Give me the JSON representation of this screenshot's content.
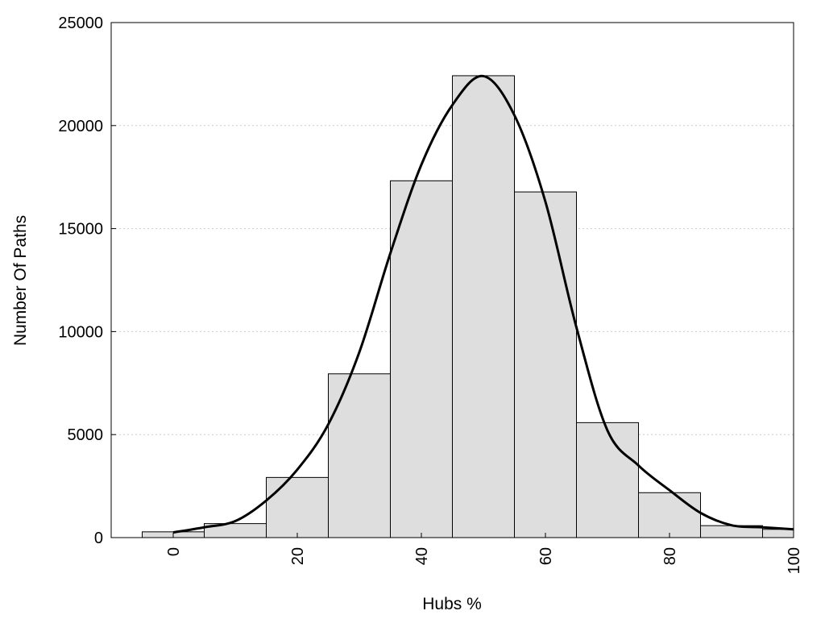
{
  "chart_data": {
    "type": "bar",
    "xlabel": "Hubs %",
    "ylabel": "Number Of Paths",
    "xlim": [
      -10,
      100
    ],
    "ylim": [
      0,
      25000
    ],
    "grid": {
      "horizontal": true,
      "style": "dotted"
    },
    "x_tick_labels": [
      "0",
      "20",
      "40",
      "60",
      "80",
      "100"
    ],
    "y_tick_labels": [
      "0",
      "5000",
      "10000",
      "15000",
      "20000",
      "25000"
    ],
    "bins": [
      {
        "center": 0,
        "value": 280
      },
      {
        "center": 10,
        "value": 680
      },
      {
        "center": 20,
        "value": 2920
      },
      {
        "center": 30,
        "value": 7950
      },
      {
        "center": 40,
        "value": 17320
      },
      {
        "center": 50,
        "value": 22420
      },
      {
        "center": 60,
        "value": 16780
      },
      {
        "center": 70,
        "value": 5580
      },
      {
        "center": 80,
        "value": 2180
      },
      {
        "center": 90,
        "value": 580
      },
      {
        "center": 100,
        "value": 400
      }
    ],
    "bin_width": 10,
    "density_curve": {
      "x": [
        0,
        5,
        10,
        15,
        20,
        25,
        30,
        35,
        40,
        45,
        50,
        55,
        60,
        65,
        70,
        75,
        80,
        85,
        90,
        95,
        100
      ],
      "y": [
        250,
        500,
        800,
        1800,
        3300,
        5500,
        9000,
        13800,
        18100,
        21000,
        22400,
        20500,
        16300,
        10200,
        5200,
        3500,
        2300,
        1200,
        600,
        500,
        400
      ]
    },
    "colors": {
      "bar_fill": "#dedede",
      "bar_stroke": "#000000",
      "curve": "#000000",
      "grid": "#cccccc"
    }
  }
}
